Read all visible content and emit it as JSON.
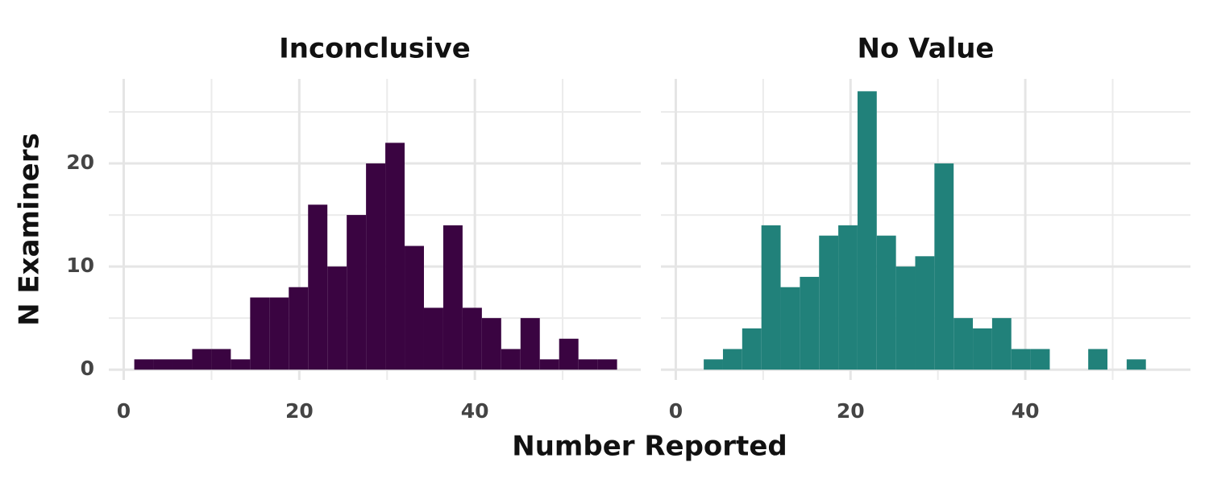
{
  "chart_data": [
    {
      "type": "histogram",
      "title": "Inconclusive",
      "color": "#3a0441",
      "bins": [
        1.2,
        3.4,
        5.6,
        7.8,
        10.0,
        12.2,
        14.4,
        16.6,
        18.8,
        21.0,
        23.2,
        25.4,
        27.6,
        29.8,
        32.0,
        34.2,
        36.4,
        38.6,
        40.8,
        43.0,
        45.2,
        47.4,
        49.6,
        51.8,
        54.0,
        56.2
      ],
      "counts": [
        1,
        1,
        1,
        2,
        2,
        1,
        7,
        7,
        8,
        16,
        10,
        15,
        20,
        22,
        12,
        6,
        14,
        6,
        5,
        2,
        5,
        1,
        3,
        1,
        1
      ],
      "xlim": [
        -1.7,
        58.9
      ],
      "xticks": [
        0,
        20,
        40
      ],
      "x_minor_ticks": [
        10,
        30,
        50
      ],
      "ylim": [
        -1,
        28.2
      ],
      "yticks": [
        0,
        10,
        20
      ],
      "y_minor_ticks": [
        5,
        15,
        25
      ],
      "grid": true
    },
    {
      "type": "histogram",
      "title": "No Value",
      "color": "#21817a",
      "bins": [
        3.2,
        5.4,
        7.6,
        9.8,
        12.0,
        14.2,
        16.4,
        18.6,
        20.8,
        23.0,
        25.2,
        27.4,
        29.6,
        31.8,
        34.0,
        36.2,
        38.4,
        40.6,
        42.8,
        45.0,
        47.2,
        49.4,
        51.6,
        53.8
      ],
      "counts": [
        1,
        2,
        4,
        14,
        8,
        9,
        13,
        14,
        27,
        13,
        10,
        11,
        20,
        5,
        4,
        5,
        2,
        2,
        0,
        0,
        2,
        0,
        1
      ],
      "xlim": [
        -1.7,
        58.9
      ],
      "xticks": [
        0,
        20,
        40
      ],
      "x_minor_ticks": [
        10,
        30,
        50
      ],
      "ylim": [
        -1,
        28.2
      ],
      "yticks": [
        0,
        10,
        20
      ],
      "y_minor_ticks": [
        5,
        15,
        25
      ],
      "grid": true
    }
  ],
  "xlabel": "Number Reported",
  "ylabel": "N Examiners"
}
